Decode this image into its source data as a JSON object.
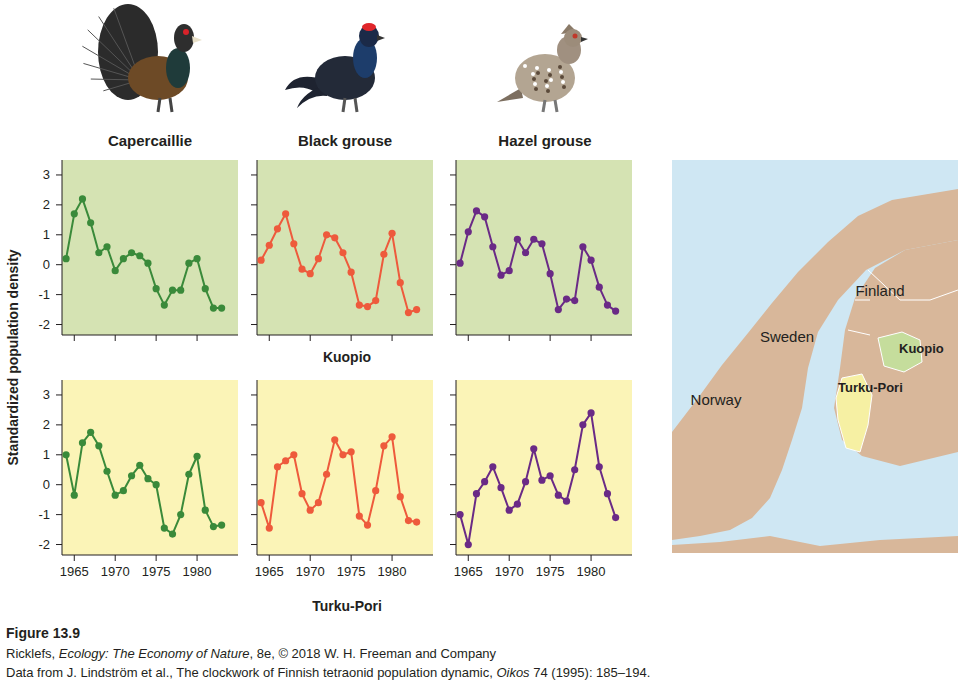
{
  "figure": {
    "species": [
      "Capercaillie",
      "Black grouse",
      "Hazel grouse"
    ],
    "regions": [
      "Kuopio",
      "Turku-Pori"
    ],
    "y_label": "Standardized population density",
    "map": {
      "countries": [
        "Norway",
        "Sweden",
        "Finland"
      ],
      "regions": [
        "Kuopio",
        "Turku-Pori"
      ]
    },
    "caption": {
      "figure": "Figure 13.9",
      "credit": [
        "Ricklefs, ",
        "Ecology: The Economy of Nature",
        ", 8e, © 2018 W. H. Freeman and Company"
      ],
      "source": [
        "Data from J. Lindström et al., The clockwork of Finnish tetraonid population dynamic, ",
        "Oikos",
        " 74 (1995): 185–194."
      ]
    }
  },
  "chart_data": [
    {
      "type": "line",
      "color": "#3a8a3a",
      "marker": "circle",
      "tick_labels": "y",
      "x": [
        1964,
        1965,
        1966,
        1967,
        1968,
        1969,
        1970,
        1971,
        1972,
        1973,
        1974,
        1975,
        1976,
        1977,
        1978,
        1979,
        1980,
        1981,
        1982,
        1983
      ],
      "values": [
        0.2,
        1.7,
        2.2,
        1.4,
        0.4,
        0.6,
        -0.2,
        0.2,
        0.4,
        0.3,
        0.05,
        -0.8,
        -1.35,
        -0.85,
        -0.85,
        0.05,
        0.2,
        -0.8,
        -1.45,
        -1.45
      ],
      "xlim": [
        1963.5,
        1985
      ],
      "xticks": [
        1965,
        1970,
        1975,
        1980
      ],
      "ylim": [
        -2.35,
        3.5
      ],
      "yticks": [
        -2,
        -1,
        0,
        1,
        2,
        3
      ]
    },
    {
      "type": "line",
      "color": "#ee5a3c",
      "marker": "circle",
      "tick_labels": false,
      "x": [
        1964,
        1965,
        1966,
        1967,
        1968,
        1969,
        1970,
        1971,
        1972,
        1973,
        1974,
        1975,
        1976,
        1977,
        1978,
        1979,
        1980,
        1981,
        1982,
        1983
      ],
      "values": [
        0.15,
        0.65,
        1.2,
        1.7,
        0.7,
        -0.15,
        -0.3,
        0.2,
        1.0,
        0.9,
        0.4,
        -0.25,
        -1.35,
        -1.4,
        -1.2,
        0.35,
        1.05,
        -0.6,
        -1.6,
        -1.5
      ],
      "xlim": [
        1963.5,
        1985
      ],
      "xticks": [
        1965,
        1970,
        1975,
        1980
      ],
      "ylim": [
        -2.35,
        3.5
      ],
      "yticks": [
        -2,
        -1,
        0,
        1,
        2,
        3
      ]
    },
    {
      "type": "line",
      "color": "#6a2a86",
      "marker": "circle",
      "tick_labels": false,
      "x": [
        1964,
        1965,
        1966,
        1967,
        1968,
        1969,
        1970,
        1971,
        1972,
        1973,
        1974,
        1975,
        1976,
        1977,
        1978,
        1979,
        1980,
        1981,
        1982,
        1983
      ],
      "values": [
        0.05,
        1.1,
        1.8,
        1.6,
        0.6,
        -0.35,
        -0.2,
        0.85,
        0.4,
        0.85,
        0.7,
        -0.3,
        -1.5,
        -1.15,
        -1.2,
        0.6,
        0.15,
        -0.75,
        -1.35,
        -1.55
      ],
      "xlim": [
        1963.5,
        1985
      ],
      "xticks": [
        1965,
        1970,
        1975,
        1980
      ],
      "ylim": [
        -2.35,
        3.5
      ],
      "yticks": [
        -2,
        -1,
        0,
        1,
        2,
        3
      ]
    },
    {
      "type": "line",
      "color": "#3a8a3a",
      "marker": "circle",
      "tick_labels": true,
      "x": [
        1964,
        1965,
        1966,
        1967,
        1968,
        1969,
        1970,
        1971,
        1972,
        1973,
        1974,
        1975,
        1976,
        1977,
        1978,
        1979,
        1980,
        1981,
        1982,
        1983
      ],
      "values": [
        1.0,
        -0.35,
        1.4,
        1.75,
        1.3,
        0.45,
        -0.35,
        -0.2,
        0.3,
        0.65,
        0.2,
        0.0,
        -1.45,
        -1.65,
        -1.0,
        0.35,
        0.95,
        -0.85,
        -1.4,
        -1.35
      ],
      "xlim": [
        1963.5,
        1985
      ],
      "xticks": [
        1965,
        1970,
        1975,
        1980
      ],
      "ylim": [
        -2.35,
        3.5
      ],
      "yticks": [
        -2,
        -1,
        0,
        1,
        2,
        3
      ]
    },
    {
      "type": "line",
      "color": "#ee5a3c",
      "marker": "circle",
      "tick_labels": "x",
      "x": [
        1964,
        1965,
        1966,
        1967,
        1968,
        1969,
        1970,
        1971,
        1972,
        1973,
        1974,
        1975,
        1976,
        1977,
        1978,
        1979,
        1980,
        1981,
        1982,
        1983
      ],
      "values": [
        -0.6,
        -1.45,
        0.6,
        0.8,
        1.0,
        -0.3,
        -0.85,
        -0.6,
        0.35,
        1.5,
        1.0,
        1.1,
        -1.05,
        -1.35,
        -0.2,
        1.3,
        1.6,
        -0.4,
        -1.2,
        -1.25
      ],
      "xlim": [
        1963.5,
        1985
      ],
      "xticks": [
        1965,
        1970,
        1975,
        1980
      ],
      "ylim": [
        -2.35,
        3.5
      ],
      "yticks": [
        -2,
        -1,
        0,
        1,
        2,
        3
      ]
    },
    {
      "type": "line",
      "color": "#6a2a86",
      "marker": "circle",
      "tick_labels": "x",
      "x": [
        1964,
        1965,
        1966,
        1967,
        1968,
        1969,
        1970,
        1971,
        1972,
        1973,
        1974,
        1975,
        1976,
        1977,
        1978,
        1979,
        1980,
        1981,
        1982,
        1983
      ],
      "values": [
        -1.0,
        -2.0,
        -0.3,
        0.1,
        0.6,
        -0.1,
        -0.85,
        -0.65,
        0.1,
        1.2,
        0.15,
        0.3,
        -0.35,
        -0.55,
        0.5,
        2.0,
        2.4,
        0.6,
        -0.3,
        -1.1
      ],
      "xlim": [
        1963.5,
        1985
      ],
      "xticks": [
        1965,
        1970,
        1975,
        1980
      ],
      "ylim": [
        -2.35,
        3.5
      ],
      "yticks": [
        -2,
        -1,
        0,
        1,
        2,
        3
      ]
    }
  ]
}
